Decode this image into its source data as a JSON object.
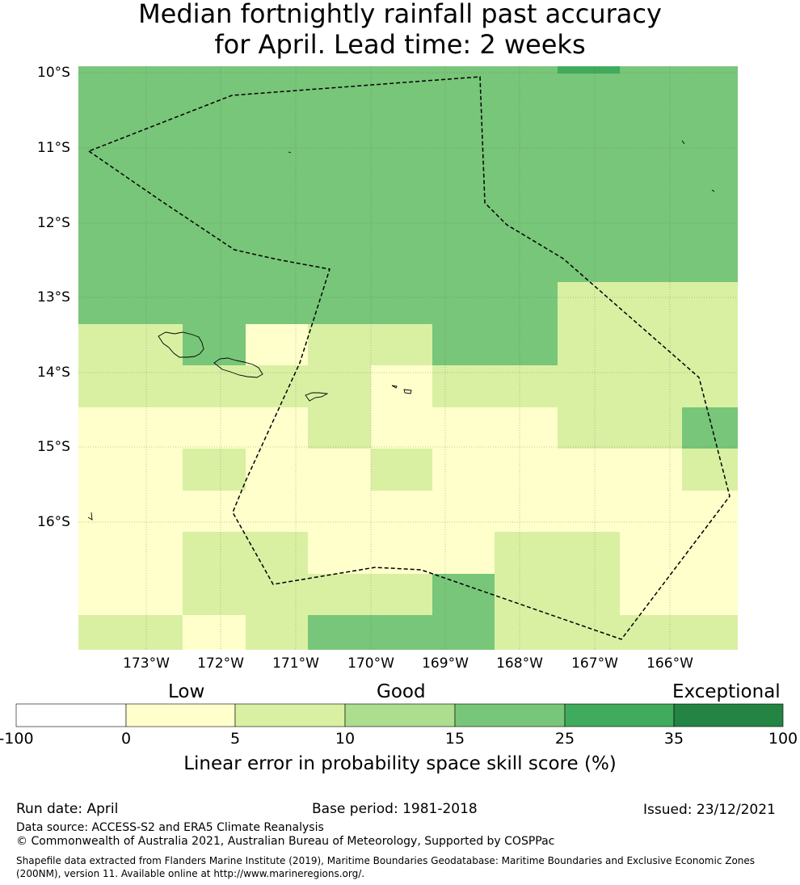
{
  "title": {
    "line1": "Median fortnightly rainfall past accuracy",
    "line2": "for April. Lead time: 2 weeks"
  },
  "map": {
    "lat_labels": [
      "10°S",
      "11°S",
      "12°S",
      "13°S",
      "14°S",
      "15°S",
      "16°S"
    ],
    "lon_labels": [
      "173°W",
      "172°W",
      "171°W",
      "170°W",
      "169°W",
      "168°W",
      "167°W",
      "166°W"
    ],
    "boundary_style": "dashed black EEZ outline",
    "coastline_style": "thin black outline",
    "grid_values": [
      [
        20,
        20,
        15,
        20,
        15,
        15,
        20,
        30,
        20,
        20
      ],
      [
        20,
        20,
        15,
        20,
        15,
        15,
        20,
        20,
        20,
        15
      ],
      [
        15,
        20,
        15,
        20,
        15,
        15,
        15,
        15,
        20,
        15
      ],
      [
        15,
        20,
        15,
        15,
        15,
        15,
        20,
        20,
        20,
        20
      ],
      [
        15,
        15,
        15,
        15,
        15,
        20,
        15,
        15,
        20,
        20
      ],
      [
        15,
        15,
        15,
        20,
        15,
        20,
        15,
        15,
        15,
        15
      ],
      [
        15,
        15,
        15,
        15,
        15,
        15,
        15,
        7,
        7,
        7
      ],
      [
        7,
        15,
        2,
        7,
        7,
        15,
        15,
        7,
        7,
        7
      ],
      [
        7,
        7,
        7,
        7,
        2,
        7,
        7,
        7,
        7,
        7
      ],
      [
        2,
        2,
        2,
        7,
        2,
        2,
        2,
        7,
        7,
        15
      ],
      [
        2,
        7,
        2,
        2,
        7,
        2,
        2,
        2,
        2,
        7
      ],
      [
        2,
        2,
        2,
        2,
        2,
        2,
        2,
        2,
        2,
        2
      ],
      [
        2,
        7,
        7,
        2,
        2,
        2,
        7,
        7,
        2,
        2
      ],
      [
        2,
        7,
        7,
        7,
        7,
        15,
        7,
        7,
        2,
        2
      ],
      [
        7,
        2,
        7,
        15,
        15,
        15,
        7,
        7,
        7,
        7
      ]
    ]
  },
  "colorbar": {
    "categories": [
      "Low",
      "Good",
      "Exceptional"
    ],
    "ticks": [
      "-100",
      "0",
      "5",
      "10",
      "15",
      "25",
      "35",
      "100"
    ],
    "colors": [
      "#ffffff",
      "#ffffcc",
      "#d9f0a3",
      "#addd8e",
      "#78c679",
      "#41ab5d",
      "#238443"
    ],
    "title": "Linear error in probability space skill score (%)"
  },
  "footer": {
    "run_date": "Run date: April",
    "base_period": "Base period: 1981-2018",
    "issued": "Issued: 23/12/2021",
    "data_source": "Data source: ACCESS-S2 and ERA5 Climate Reanalysis",
    "copyright": "© Commonwealth of Australia 2021, Australian Bureau of Meteorology, Supported by COSPPac",
    "shapefile": "Shapefile data extracted from Flanders Marine Institute (2019), Maritime Boundaries Geodatabase: Maritime Boundaries and Exclusive Economic Zones (200NM), version 11. Available online at http://www.marineregions.org/."
  }
}
